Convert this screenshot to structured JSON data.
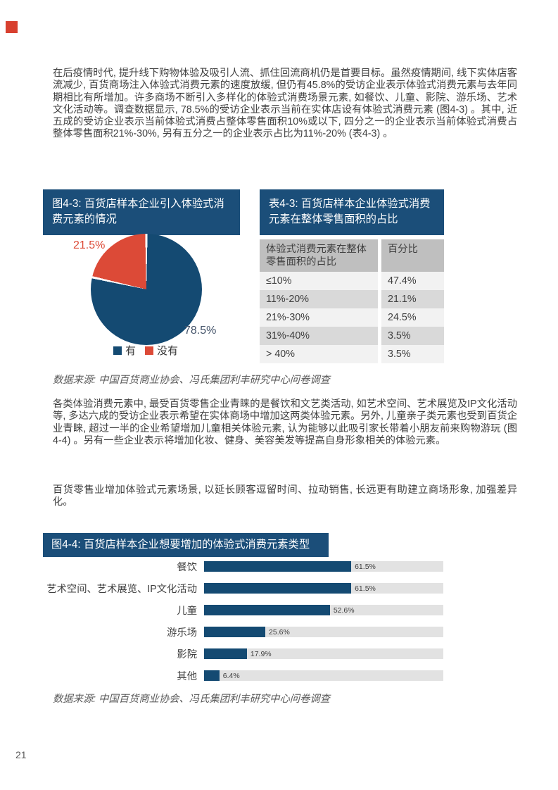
{
  "page": {
    "number": "21"
  },
  "colors": {
    "header_bg": "#1B4E79",
    "navy": "#144A72",
    "red": "#DC4A37",
    "logo_red": "#D8402F",
    "body_text": "#3F3F3F",
    "muted_text": "#595959",
    "pie_yes_label": "#44546A",
    "table_header_bg": "#BFBFBF",
    "table_row_light": "#F2F2F2",
    "table_row_dark": "#D9D9D9",
    "bar_track": "#E2E2E2"
  },
  "paragraphs": [
    "在后疫情时代, 提升线下购物体验及吸引人流、抓住回流商机仍是首要目标。虽然疫情期间, 线下实体店客流减少, 百货商场注入体验式消费元素的速度放缓, 但仍有45.8%的受访企业表示体验式消费元素与去年同期相比有所增加。许多商场不断引入多样化的体验式消费场景元素, 如餐饮、儿童、影院、游乐场、艺术文化活动等。调查数据显示, 78.5%的受访企业表示当前在实体店设有体验式消费元素 (图4-3) 。其中, 近五成的受访企业表示当前体验式消费占整体零售面积10%或以下, 四分之一的企业表示当前体验式消费占整体零售面积21%-30%, 另有五分之一的企业表示占比为11%-20% (表4-3) 。",
    "各类体验消费元素中, 最受百货零售企业青睐的是餐饮和文艺类活动, 如艺术空间、艺术展览及IP文化活动等, 多达六成的受访企业表示希望在实体商场中增加这两类体验元素。另外, 儿童亲子类元素也受到百货企业青睐, 超过一半的企业希望增加儿童相关体验元素, 认为能够以此吸引家长带着小朋友前来购物游玩 (图4-4) 。另有一些企业表示将增加化妆、健身、美容美发等提高自身形象相关的体验元素。",
    "百货零售业增加体验式元素场景, 以延长顾客逗留时间、拉动销售, 长远更有助建立商场形象, 加强差异化。"
  ],
  "figure43": {
    "title": "图4-3: 百货店样本企业引入体验式消费元素的情况",
    "slice_labels": {
      "yes": "78.5%",
      "no": "21.5%"
    },
    "legend": [
      "有",
      "没有"
    ]
  },
  "table43": {
    "title": "表4-3: 百货店样本企业体验式消费元素在整体零售面积的占比",
    "columns": [
      "体验式消费元素在整体零售面积的占比",
      "百分比"
    ],
    "rows": [
      [
        "≤10%",
        "47.4%"
      ],
      [
        "11%-20%",
        "21.1%"
      ],
      [
        "21%-30%",
        "24.5%"
      ],
      [
        "31%-40%",
        "3.5%"
      ],
      [
        "> 40%",
        "3.5%"
      ]
    ]
  },
  "source_note": "数据来源: 中国百货商业协会、冯氏集团利丰研究中心问卷调查",
  "figure44": {
    "title": "图4-4: 百货店样本企业想要增加的体验式消费元素类型",
    "bars": [
      {
        "label": "餐饮",
        "value": 61.5,
        "display": "61.5%"
      },
      {
        "label": "艺术空间、艺术展览、IP文化活动",
        "value": 61.5,
        "display": "61.5%"
      },
      {
        "label": "儿童",
        "value": 52.6,
        "display": "52.6%"
      },
      {
        "label": "游乐场",
        "value": 25.6,
        "display": "25.6%"
      },
      {
        "label": "影院",
        "value": 17.9,
        "display": "17.9%"
      },
      {
        "label": "其他",
        "value": 6.4,
        "display": "6.4%"
      }
    ]
  },
  "chart_data": [
    {
      "type": "pie",
      "title": "图4-3: 百货店样本企业引入体验式消费元素的情况",
      "labels": [
        "有",
        "没有"
      ],
      "values": [
        78.5,
        21.5
      ],
      "data_labels": [
        "78.5%",
        "21.5%"
      ],
      "colors": [
        "#144A72",
        "#DC4A37"
      ],
      "legend_position": "bottom",
      "start_angle_deg": 0,
      "direction": "clockwise"
    },
    {
      "type": "bar",
      "orientation": "horizontal",
      "title": "图4-4: 百货店样本企业想要增加的体验式消费元素类型",
      "categories": [
        "餐饮",
        "艺术空间、艺术展览、IP文化活动",
        "儿童",
        "游乐场",
        "影院",
        "其他"
      ],
      "values": [
        61.5,
        61.5,
        52.6,
        25.6,
        17.9,
        6.4
      ],
      "value_labels": [
        "61.5%",
        "61.5%",
        "52.6%",
        "25.6%",
        "17.9%",
        "6.4%"
      ],
      "xlim": [
        0,
        100
      ],
      "grid": false,
      "bar_color": "#144A72",
      "track_color": "#E2E2E2"
    }
  ]
}
